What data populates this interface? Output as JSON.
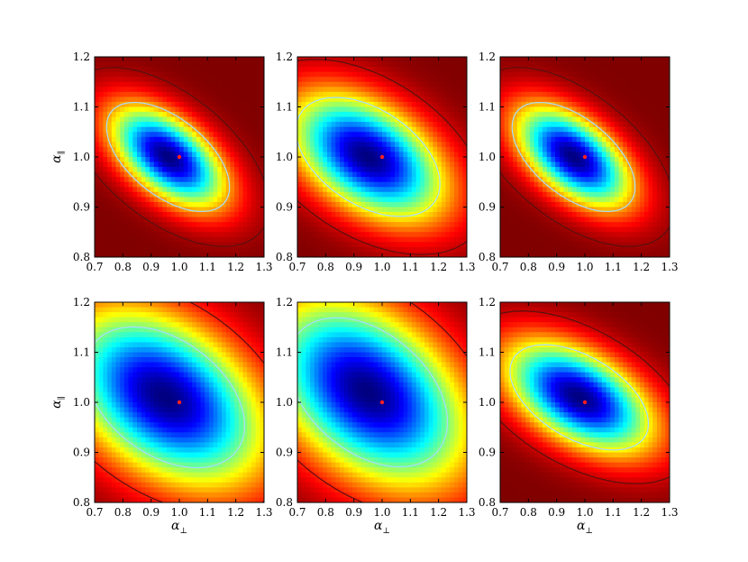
{
  "chart_data": [
    {
      "type": "heatmap",
      "panel": "top-left",
      "xlabel": "",
      "ylabel_symbol": "α",
      "ylabel_sub": "∥",
      "x_ticks": [
        "0.7",
        "0.8",
        "0.9",
        "1.0",
        "1.1",
        "1.2",
        "1.3"
      ],
      "y_ticks": [
        "0.8",
        "0.9",
        "1.0",
        "1.1",
        "1.2"
      ],
      "xlim": [
        0.7,
        1.3
      ],
      "ylim": [
        0.8,
        1.2
      ],
      "best_fit_point": {
        "x": 1.0,
        "y": 1.0
      },
      "minimum": {
        "x": 0.96,
        "y": 1.0
      },
      "tilt": 0.55,
      "spread": {
        "x": 0.12,
        "y": 0.06
      },
      "outer_level": "high",
      "background": "dark-red",
      "colormap": "jet",
      "contours": {
        "inner": "light-blue",
        "outer": "dark-red"
      }
    },
    {
      "type": "heatmap",
      "panel": "top-middle",
      "xlabel": "",
      "ylabel_symbol": "",
      "ylabel_sub": "",
      "x_ticks": [
        "0.7",
        "0.8",
        "0.9",
        "1.0",
        "1.1",
        "1.2",
        "1.3"
      ],
      "y_ticks": [
        "0.8",
        "0.9",
        "1.0",
        "1.1",
        "1.2"
      ],
      "xlim": [
        0.7,
        1.3
      ],
      "ylim": [
        0.8,
        1.2
      ],
      "best_fit_point": {
        "x": 1.0,
        "y": 1.0
      },
      "minimum": {
        "x": 0.95,
        "y": 1.0
      },
      "tilt": 0.45,
      "spread": {
        "x": 0.15,
        "y": 0.07
      },
      "outer_level": "medium",
      "background": "red",
      "colormap": "jet",
      "contours": {
        "inner": "light-blue",
        "outer": "dark-red"
      }
    },
    {
      "type": "heatmap",
      "panel": "top-right",
      "xlabel": "",
      "ylabel_symbol": "",
      "ylabel_sub": "",
      "x_ticks": [
        "0.7",
        "0.8",
        "0.9",
        "1.0",
        "1.1",
        "1.2",
        "1.3"
      ],
      "y_ticks": [
        "0.8",
        "0.9",
        "1.0",
        "1.1",
        "1.2"
      ],
      "xlim": [
        0.7,
        1.3
      ],
      "ylim": [
        0.8,
        1.2
      ],
      "best_fit_point": {
        "x": 1.0,
        "y": 1.0
      },
      "minimum": {
        "x": 0.96,
        "y": 1.0
      },
      "tilt": 0.55,
      "spread": {
        "x": 0.12,
        "y": 0.06
      },
      "outer_level": "high",
      "background": "dark-red",
      "colormap": "jet",
      "contours": {
        "inner": "light-blue",
        "outer": "dark-red"
      }
    },
    {
      "type": "heatmap",
      "panel": "bottom-left",
      "xlabel_symbol": "α",
      "xlabel_sub": "⊥",
      "ylabel_symbol": "α",
      "ylabel_sub": "∥",
      "x_ticks": [
        "0.7",
        "0.8",
        "0.9",
        "1.0",
        "1.1",
        "1.2",
        "1.3"
      ],
      "y_ticks": [
        "0.8",
        "0.9",
        "1.0",
        "1.1",
        "1.2"
      ],
      "xlim": [
        0.7,
        1.3
      ],
      "ylim": [
        0.8,
        1.2
      ],
      "best_fit_point": {
        "x": 1.0,
        "y": 1.0
      },
      "minimum": {
        "x": 0.95,
        "y": 1.01
      },
      "tilt": 0.4,
      "spread": {
        "x": 0.17,
        "y": 0.085
      },
      "outer_level": "low",
      "background": "yellow-orange",
      "colormap": "jet",
      "contours": {
        "inner": "light-blue",
        "outer": "dark-red"
      }
    },
    {
      "type": "heatmap",
      "panel": "bottom-middle",
      "xlabel_symbol": "α",
      "xlabel_sub": "⊥",
      "ylabel_symbol": "",
      "ylabel_sub": "",
      "x_ticks": [
        "0.7",
        "0.8",
        "0.9",
        "1.0",
        "1.1",
        "1.2",
        "1.3"
      ],
      "y_ticks": [
        "0.8",
        "0.9",
        "1.0",
        "1.1",
        "1.2"
      ],
      "xlim": [
        0.7,
        1.3
      ],
      "ylim": [
        0.8,
        1.2
      ],
      "best_fit_point": {
        "x": 1.0,
        "y": 1.0
      },
      "minimum": {
        "x": 0.95,
        "y": 1.02
      },
      "tilt": 0.4,
      "spread": {
        "x": 0.17,
        "y": 0.09
      },
      "outer_level": "low",
      "background": "yellow-orange",
      "colormap": "jet",
      "contours": {
        "inner": "light-blue",
        "outer": "dark-red"
      }
    },
    {
      "type": "heatmap",
      "panel": "bottom-right",
      "xlabel_symbol": "α",
      "xlabel_sub": "⊥",
      "ylabel_symbol": "",
      "ylabel_sub": "",
      "x_ticks": [
        "0.7",
        "0.8",
        "0.9",
        "1.0",
        "1.1",
        "1.2",
        "1.3"
      ],
      "y_ticks": [
        "0.8",
        "0.9",
        "1.0",
        "1.1",
        "1.2"
      ],
      "xlim": [
        0.7,
        1.3
      ],
      "ylim": [
        0.8,
        1.2
      ],
      "best_fit_point": {
        "x": 1.0,
        "y": 1.0
      },
      "minimum": {
        "x": 0.98,
        "y": 1.01
      },
      "tilt": 0.5,
      "spread": {
        "x": 0.14,
        "y": 0.06
      },
      "outer_level": "medium",
      "background": "mixed",
      "colormap": "jet",
      "contours": {
        "inner": "light-blue",
        "outer": "dark-red"
      }
    }
  ],
  "colors": {
    "best_fit_point": "#ff2020",
    "inner_contour": "#a8dcff",
    "outer_contour": "#5a1010"
  }
}
